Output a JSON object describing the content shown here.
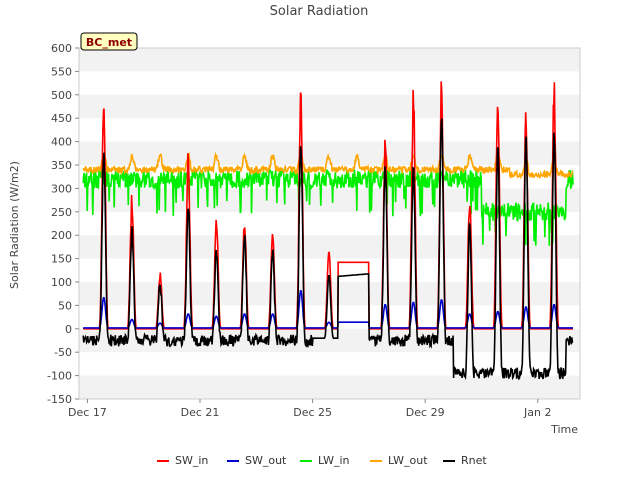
{
  "chart_data": {
    "type": "line",
    "title": "Solar Radiation",
    "xlabel": "Time",
    "ylabel": "Solar Radiation (W/m2)",
    "site_label": "BC_met",
    "ylim": [
      -150,
      600
    ],
    "y_ticks": [
      -150,
      -100,
      -50,
      0,
      50,
      100,
      150,
      200,
      250,
      300,
      350,
      400,
      450,
      500,
      550,
      600
    ],
    "xlim_days": [
      16.7,
      34.5
    ],
    "x_ticks": [
      {
        "day": 17,
        "label": "Dec 17"
      },
      {
        "day": 21,
        "label": "Dec 21"
      },
      {
        "day": 25,
        "label": "Dec 25"
      },
      {
        "day": 29,
        "label": "Dec 29"
      },
      {
        "day": 33,
        "label": "Jan 2"
      }
    ],
    "grid": "horizontal bands",
    "legend_position": "bottom",
    "colors": {
      "SW_in": "#ff0000",
      "SW_out": "#0000cc",
      "LW_in": "#00ee00",
      "LW_out": "#ffa500",
      "Rnet": "#000000"
    },
    "daily_peaks": {
      "days": [
        17,
        18,
        19,
        20,
        21,
        22,
        23,
        24,
        25,
        26,
        27,
        28,
        29,
        30,
        31,
        32,
        33,
        34
      ],
      "SW_in": [
        515,
        300,
        125,
        385,
        250,
        250,
        215,
        530,
        165,
        145,
        430,
        525,
        555,
        290,
        510,
        475,
        545,
        520
      ],
      "SW_out": [
        65,
        18,
        10,
        30,
        25,
        30,
        30,
        80,
        12,
        12,
        50,
        55,
        60,
        30,
        35,
        45,
        50,
        45
      ],
      "Rnet": [
        375,
        210,
        95,
        265,
        160,
        200,
        160,
        390,
        115,
        115,
        350,
        340,
        450,
        230,
        385,
        420,
        420,
        380
      ]
    },
    "series": [
      {
        "name": "SW_in",
        "color": "#ff0000"
      },
      {
        "name": "SW_out",
        "color": "#0000cc"
      },
      {
        "name": "LW_in",
        "color": "#00ee00"
      },
      {
        "name": "LW_out",
        "color": "#ffa500"
      },
      {
        "name": "Rnet",
        "color": "#000000"
      }
    ]
  }
}
